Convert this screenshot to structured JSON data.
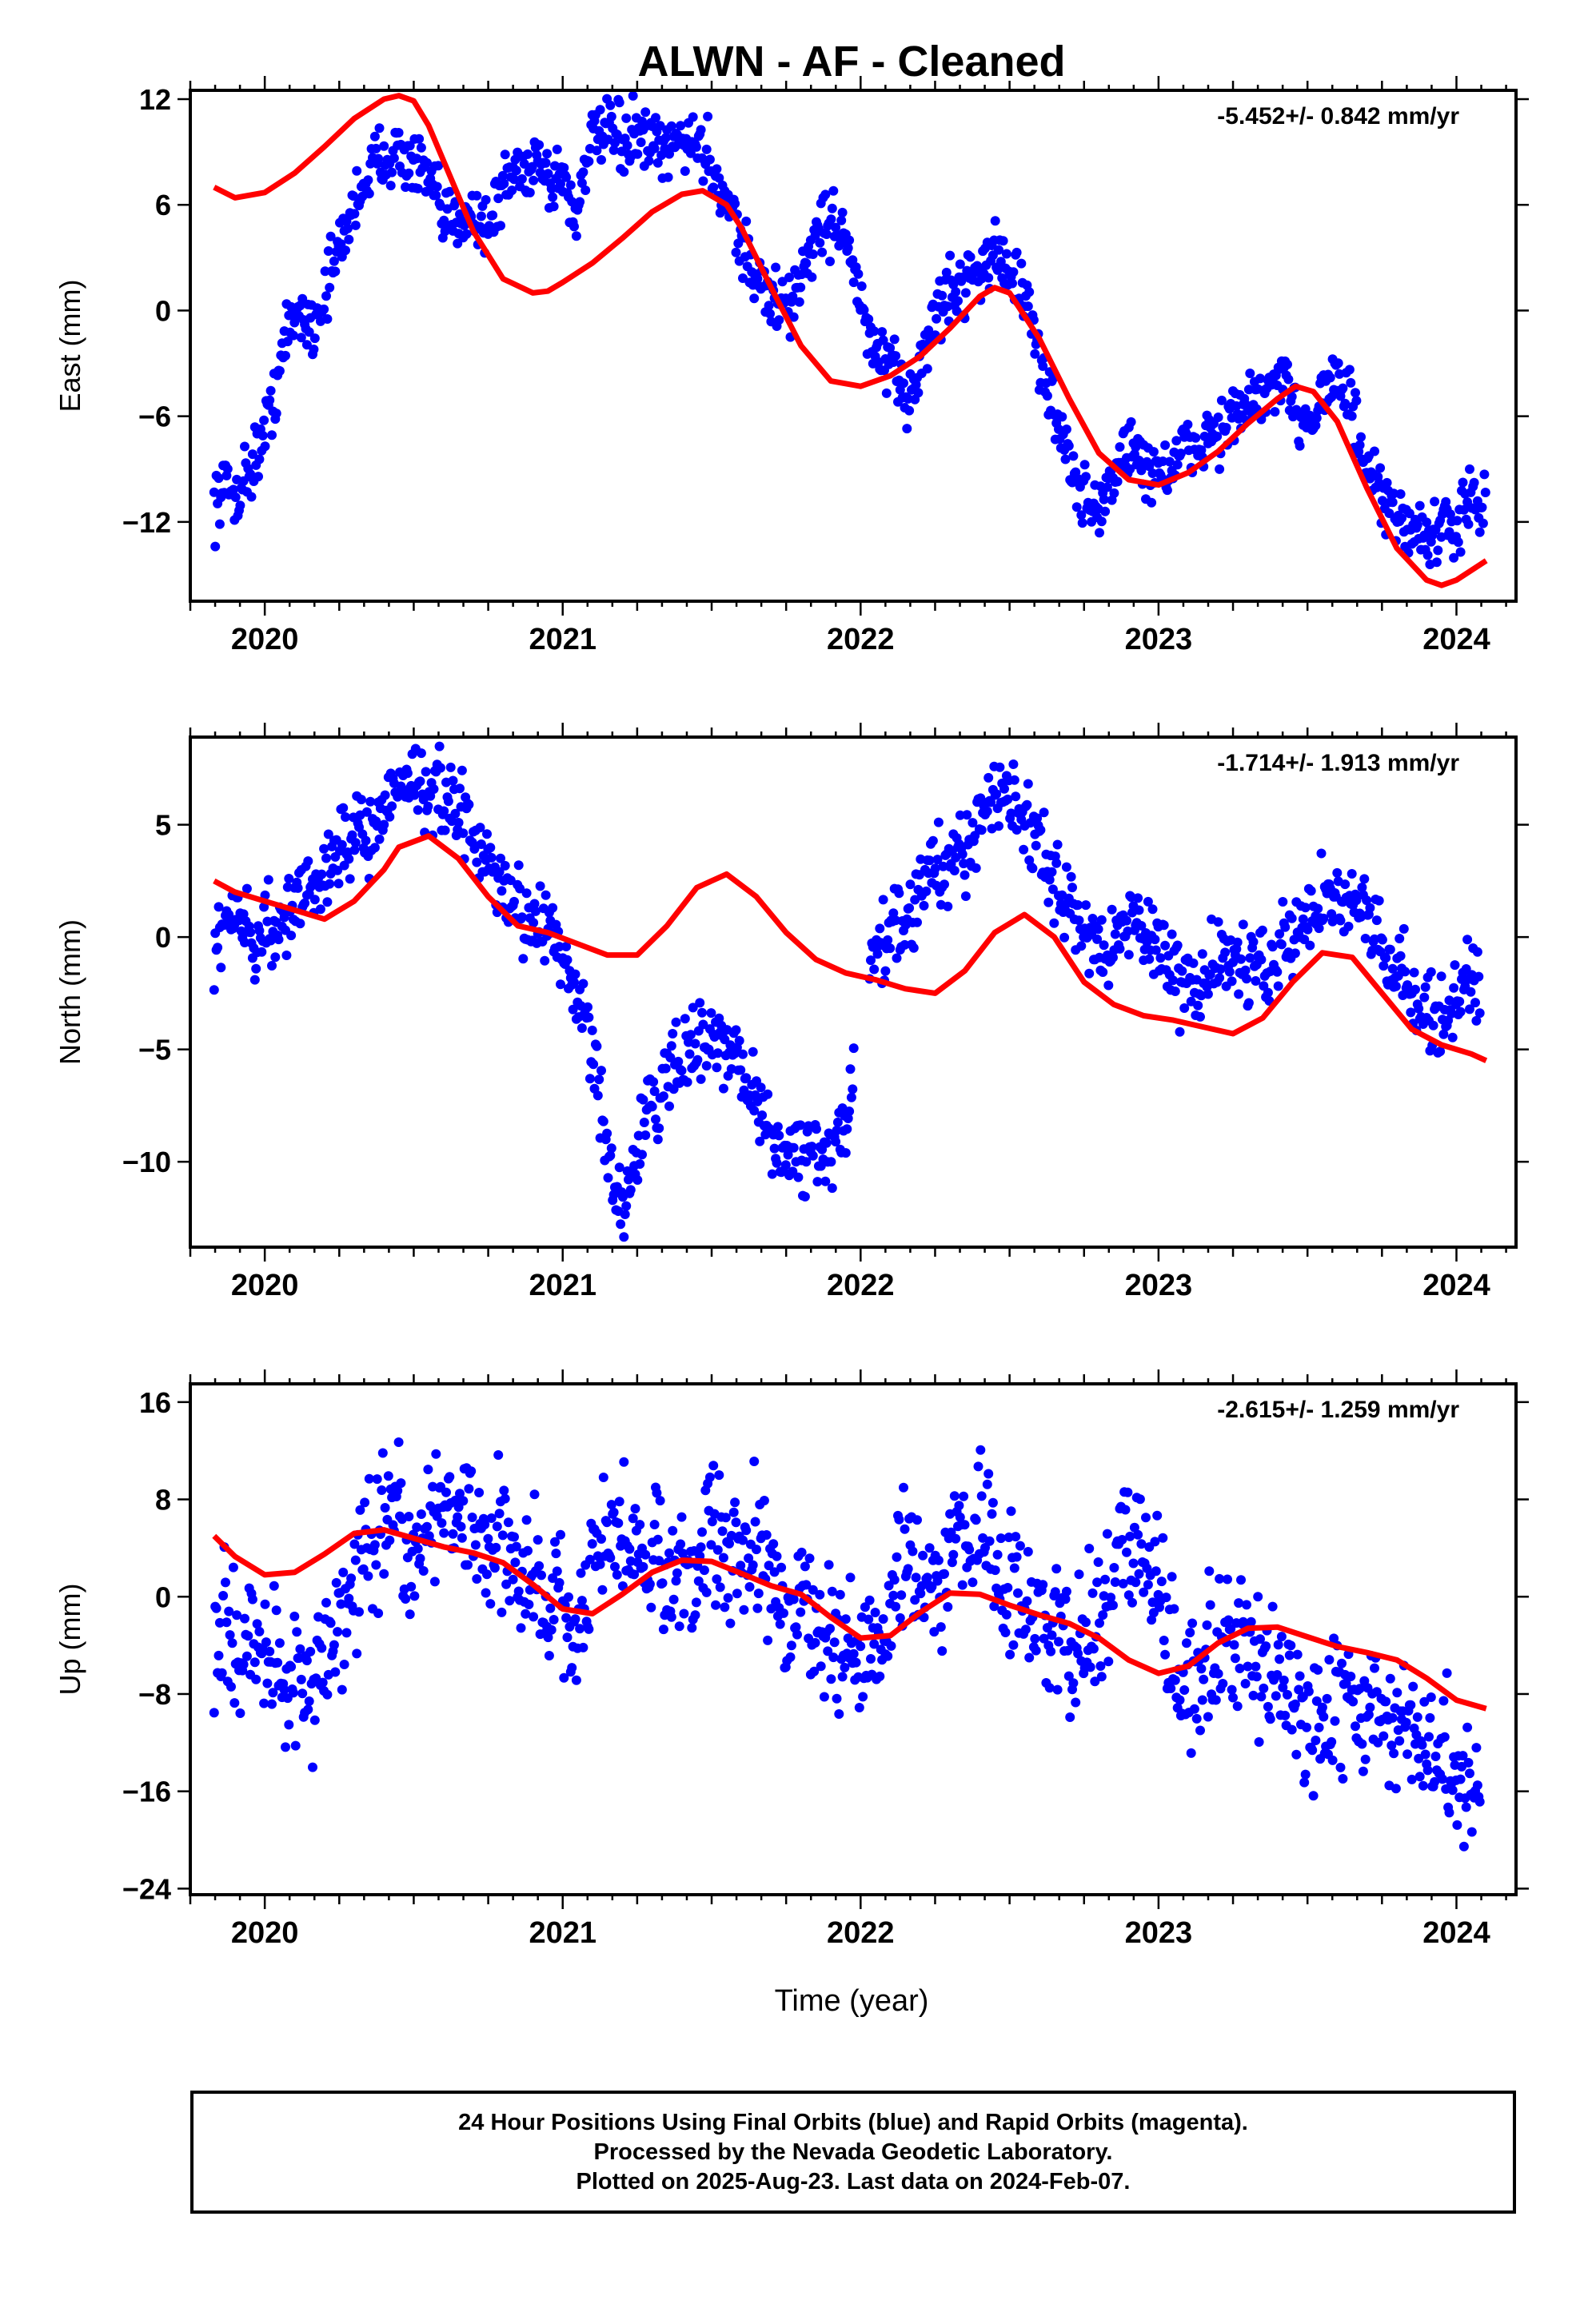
{
  "title": "ALWN  - AF - Cleaned",
  "xlabel": "Time (year)",
  "caption": {
    "line1": "24 Hour Positions Using Final Orbits (blue) and Rapid Orbits (magenta).",
    "line2": "Processed by the Nevada Geodetic Laboratory.",
    "line3": "Plotted on 2025-Aug-23. Last data on 2024-Feb-07."
  },
  "colors": {
    "points": "#0000ff",
    "model": "#ff0000",
    "axes": "#000000"
  },
  "chart_data": [
    {
      "type": "scatter",
      "ylabel": "East (mm)",
      "rate_label": "-5.452+/- 0.842 mm/yr",
      "xlim": [
        2019.75,
        2024.2
      ],
      "ylim": [
        -16.5,
        12.5
      ],
      "x_ticks": [
        "2020",
        "2021",
        "2022",
        "2023",
        "2024"
      ],
      "y_ticks": [
        12,
        6,
        0,
        -6,
        -12
      ],
      "grid": false,
      "series": [
        {
          "role": "observations",
          "color": "#0000ff",
          "x": [
            2019.83,
            2019.86,
            2019.9,
            2019.95,
            2020.0,
            2020.04,
            2020.08,
            2020.12,
            2020.16,
            2020.2,
            2020.24,
            2020.28,
            2020.32,
            2020.36,
            2020.4,
            2020.44,
            2020.48,
            2020.52,
            2020.56,
            2020.6,
            2020.64,
            2020.68,
            2020.72,
            2020.76,
            2020.8,
            2020.84,
            2020.88,
            2020.92,
            2020.96,
            2021.0,
            2021.04,
            2021.08,
            2021.12,
            2021.16,
            2021.2,
            2021.24,
            2021.28,
            2021.32,
            2021.36,
            2021.4,
            2021.44,
            2021.48,
            2021.52,
            2021.56,
            2021.6,
            2021.64,
            2021.68,
            2021.72,
            2021.76,
            2021.8,
            2021.84,
            2021.88,
            2021.92,
            2021.96,
            2022.0,
            2022.04,
            2022.08,
            2022.12,
            2022.16,
            2022.2,
            2022.24,
            2022.28,
            2022.32,
            2022.36,
            2022.4,
            2022.44,
            2022.48,
            2022.52,
            2022.56,
            2022.6,
            2022.64,
            2022.68,
            2022.72,
            2022.76,
            2022.8,
            2022.84,
            2022.88,
            2022.92,
            2022.96,
            2023.0,
            2023.04,
            2023.08,
            2023.12,
            2023.16,
            2023.2,
            2023.24,
            2023.28,
            2023.32,
            2023.36,
            2023.4,
            2023.44,
            2023.48,
            2023.52,
            2023.56,
            2023.6,
            2023.64,
            2023.68,
            2023.72,
            2023.76,
            2023.8,
            2023.84,
            2023.88,
            2023.92,
            2023.96,
            2024.0,
            2024.04,
            2024.08,
            2024.1
          ],
          "y": [
            -11,
            -10,
            -10.5,
            -9,
            -7,
            -4,
            -1,
            0,
            -1,
            1,
            3,
            5,
            7,
            8,
            9,
            9,
            8.5,
            8,
            7,
            5,
            5,
            6,
            5,
            5,
            7,
            8,
            8,
            9,
            7,
            8,
            5,
            9,
            10,
            10,
            9.5,
            10,
            9.5,
            9,
            9,
            10,
            9.5,
            9,
            7.5,
            6,
            4,
            2,
            1,
            0.5,
            0,
            2,
            4,
            5,
            5,
            4,
            0,
            -2,
            -3,
            -4,
            -5,
            -3,
            -1,
            1,
            1,
            2,
            2.5,
            3,
            3,
            2,
            0,
            -3,
            -5,
            -7,
            -10,
            -11,
            -11,
            -10,
            -8,
            -8,
            -9,
            -9,
            -9,
            -8,
            -8,
            -7,
            -7,
            -6,
            -6,
            -5,
            -5,
            -4,
            -5,
            -6,
            -6,
            -4,
            -4,
            -5,
            -8,
            -10,
            -11,
            -12,
            -12,
            -12.5,
            -13,
            -12.5,
            -12,
            -11,
            -11.5,
            -11
          ]
        },
        {
          "role": "model",
          "color": "#ff0000",
          "x": [
            2019.83,
            2019.9,
            2020.0,
            2020.1,
            2020.2,
            2020.3,
            2020.4,
            2020.45,
            2020.5,
            2020.55,
            2020.6,
            2020.7,
            2020.8,
            2020.9,
            2020.95,
            2021.0,
            2021.1,
            2021.2,
            2021.3,
            2021.4,
            2021.47,
            2021.55,
            2021.6,
            2021.7,
            2021.8,
            2021.9,
            2022.0,
            2022.1,
            2022.2,
            2022.3,
            2022.4,
            2022.45,
            2022.5,
            2022.6,
            2022.7,
            2022.8,
            2022.9,
            2023.0,
            2023.1,
            2023.2,
            2023.3,
            2023.4,
            2023.46,
            2023.52,
            2023.6,
            2023.7,
            2023.8,
            2023.9,
            2023.95,
            2024.0,
            2024.1
          ],
          "y": [
            7.0,
            6.4,
            6.7,
            7.8,
            9.3,
            10.9,
            12.0,
            12.2,
            11.9,
            10.5,
            8.5,
            4.5,
            1.8,
            1.0,
            1.1,
            1.6,
            2.7,
            4.1,
            5.6,
            6.6,
            6.8,
            6.0,
            4.7,
            1.3,
            -2.0,
            -4.0,
            -4.3,
            -3.7,
            -2.6,
            -1.0,
            0.8,
            1.3,
            1.0,
            -1.6,
            -5.0,
            -8.1,
            -9.6,
            -9.9,
            -9.2,
            -8.0,
            -6.4,
            -5.0,
            -4.3,
            -4.6,
            -6.3,
            -10.1,
            -13.5,
            -15.3,
            -15.6,
            -15.3,
            -14.2
          ]
        }
      ]
    },
    {
      "type": "scatter",
      "ylabel": "North (mm)",
      "rate_label": "-1.714+/- 1.913 mm/yr",
      "xlim": [
        2019.75,
        2024.2
      ],
      "ylim": [
        -13.8,
        8.9
      ],
      "x_ticks": [
        "2020",
        "2021",
        "2022",
        "2023",
        "2024"
      ],
      "y_ticks": [
        5,
        0,
        -5,
        -10
      ],
      "grid": false,
      "series": [
        {
          "role": "observations",
          "color": "#0000ff",
          "x": [
            2019.83,
            2019.86,
            2019.9,
            2019.95,
            2020.0,
            2020.04,
            2020.08,
            2020.12,
            2020.16,
            2020.2,
            2020.24,
            2020.28,
            2020.32,
            2020.36,
            2020.4,
            2020.44,
            2020.48,
            2020.52,
            2020.56,
            2020.6,
            2020.64,
            2020.68,
            2020.72,
            2020.76,
            2020.8,
            2020.84,
            2020.88,
            2020.92,
            2020.96,
            2021.0,
            2021.04,
            2021.08,
            2021.12,
            2021.16,
            2021.2,
            2021.24,
            2021.28,
            2021.32,
            2021.36,
            2021.4,
            2021.44,
            2021.48,
            2021.52,
            2021.56,
            2021.6,
            2021.64,
            2021.68,
            2021.72,
            2021.76,
            2021.8,
            2021.84,
            2021.88,
            2021.92,
            2021.96,
            2022.04,
            2022.08,
            2022.12,
            2022.16,
            2022.2,
            2022.24,
            2022.28,
            2022.32,
            2022.36,
            2022.4,
            2022.44,
            2022.48,
            2022.52,
            2022.56,
            2022.6,
            2022.64,
            2022.68,
            2022.72,
            2022.76,
            2022.8,
            2022.84,
            2022.88,
            2022.92,
            2022.96,
            2023.0,
            2023.04,
            2023.08,
            2023.12,
            2023.16,
            2023.2,
            2023.24,
            2023.28,
            2023.32,
            2023.36,
            2023.4,
            2023.44,
            2023.48,
            2023.52,
            2023.56,
            2023.6,
            2023.64,
            2023.68,
            2023.72,
            2023.76,
            2023.8,
            2023.84,
            2023.88,
            2023.92,
            2023.96,
            2024.0,
            2024.04,
            2024.08
          ],
          "y": [
            0,
            0.5,
            1,
            0,
            0.5,
            0,
            1,
            2,
            2.5,
            3,
            3.5,
            4,
            5,
            5,
            5.5,
            6.5,
            7,
            7,
            6.5,
            6,
            5.5,
            5,
            4,
            3,
            2,
            1.5,
            1,
            0.5,
            0.5,
            -1,
            -2,
            -4,
            -7,
            -11,
            -12,
            -10,
            -8,
            -7,
            -6,
            -5.5,
            -5,
            -5,
            -4.5,
            -5,
            -6,
            -7,
            -8,
            -9,
            -10,
            -9.5,
            -9,
            -10,
            -9,
            -8,
            -1,
            0,
            0.5,
            1,
            2,
            3,
            3,
            3.5,
            4,
            5,
            6,
            6.5,
            6,
            5,
            4,
            3,
            2,
            1,
            0,
            -0.5,
            0,
            0.5,
            0.5,
            0,
            -0.5,
            -1,
            -2,
            -2,
            -1.5,
            -1,
            -0.5,
            -1,
            -1.5,
            -1,
            -0.5,
            0,
            0.5,
            1,
            1.5,
            2,
            1.5,
            1,
            0.5,
            0,
            -1,
            -2,
            -3,
            -3.5,
            -4,
            -3,
            -2,
            -2
          ]
        },
        {
          "role": "model",
          "color": "#ff0000",
          "x": [
            2019.83,
            2019.9,
            2020.0,
            2020.1,
            2020.2,
            2020.3,
            2020.4,
            2020.45,
            2020.55,
            2020.65,
            2020.75,
            2020.85,
            2020.95,
            2021.05,
            2021.15,
            2021.25,
            2021.35,
            2021.45,
            2021.55,
            2021.65,
            2021.75,
            2021.85,
            2021.95,
            2022.05,
            2022.15,
            2022.25,
            2022.35,
            2022.45,
            2022.55,
            2022.65,
            2022.75,
            2022.85,
            2022.95,
            2023.05,
            2023.15,
            2023.25,
            2023.35,
            2023.45,
            2023.55,
            2023.65,
            2023.75,
            2023.85,
            2023.95,
            2024.05,
            2024.1
          ],
          "y": [
            2.5,
            2.0,
            1.6,
            1.2,
            0.8,
            1.6,
            3.0,
            4.0,
            4.5,
            3.5,
            1.8,
            0.5,
            0.2,
            -0.3,
            -0.8,
            -0.8,
            0.5,
            2.2,
            2.8,
            1.8,
            0.2,
            -1.0,
            -1.6,
            -1.9,
            -2.3,
            -2.5,
            -1.5,
            0.2,
            1.0,
            0,
            -2.0,
            -3.0,
            -3.5,
            -3.7,
            -4.0,
            -4.3,
            -3.6,
            -2.0,
            -0.7,
            -0.9,
            -2.5,
            -4.1,
            -4.8,
            -5.2,
            -5.5
          ]
        }
      ]
    },
    {
      "type": "scatter",
      "ylabel": "Up (mm)",
      "rate_label": "-2.615+/- 1.259 mm/yr",
      "xlim": [
        2019.75,
        2024.2
      ],
      "ylim": [
        -24.5,
        17.5
      ],
      "x_ticks": [
        "2020",
        "2021",
        "2022",
        "2023",
        "2024"
      ],
      "y_ticks": [
        16,
        8,
        0,
        -8,
        -16,
        -24
      ],
      "grid": false,
      "series": [
        {
          "role": "observations",
          "color": "#0000ff",
          "x": [
            2019.83,
            2019.86,
            2019.9,
            2019.95,
            2020.0,
            2020.04,
            2020.08,
            2020.12,
            2020.16,
            2020.2,
            2020.24,
            2020.28,
            2020.32,
            2020.36,
            2020.4,
            2020.44,
            2020.48,
            2020.52,
            2020.56,
            2020.6,
            2020.64,
            2020.68,
            2020.72,
            2020.76,
            2020.8,
            2020.84,
            2020.88,
            2020.92,
            2020.96,
            2021.0,
            2021.04,
            2021.08,
            2021.12,
            2021.16,
            2021.2,
            2021.24,
            2021.28,
            2021.32,
            2021.36,
            2021.4,
            2021.44,
            2021.48,
            2021.52,
            2021.56,
            2021.6,
            2021.64,
            2021.68,
            2021.72,
            2021.76,
            2021.8,
            2021.84,
            2021.88,
            2021.92,
            2021.96,
            2022.0,
            2022.04,
            2022.08,
            2022.12,
            2022.16,
            2022.2,
            2022.24,
            2022.28,
            2022.32,
            2022.36,
            2022.4,
            2022.44,
            2022.48,
            2022.52,
            2022.56,
            2022.6,
            2022.64,
            2022.68,
            2022.72,
            2022.76,
            2022.8,
            2022.84,
            2022.88,
            2022.92,
            2022.96,
            2023.0,
            2023.04,
            2023.08,
            2023.12,
            2023.16,
            2023.2,
            2023.24,
            2023.28,
            2023.32,
            2023.36,
            2023.4,
            2023.44,
            2023.48,
            2023.52,
            2023.56,
            2023.6,
            2023.64,
            2023.68,
            2023.72,
            2023.76,
            2023.8,
            2023.84,
            2023.88,
            2023.92,
            2023.96,
            2024.0,
            2024.04,
            2024.08
          ],
          "y": [
            -4,
            -2,
            -5,
            -3,
            -6,
            -5,
            -7,
            -6,
            -8,
            -5,
            -3,
            0,
            2,
            5,
            6,
            7,
            4,
            3,
            5,
            8,
            6,
            7,
            5,
            4,
            6,
            3,
            2,
            0,
            -2,
            1,
            -3,
            -1,
            4,
            6,
            5,
            3,
            2,
            4,
            1,
            3,
            2,
            6,
            5,
            3,
            4,
            6,
            3,
            0,
            -2,
            1,
            -3,
            -4,
            -2,
            -5,
            -6,
            -4,
            -2,
            2,
            4,
            3,
            1,
            2,
            5,
            6,
            5,
            4,
            2,
            1,
            -1,
            -2,
            -3,
            -1,
            -4,
            -2,
            -3,
            0,
            7,
            5,
            3,
            0,
            -4,
            -6,
            -7,
            -5,
            -6,
            -4,
            -3,
            -5,
            -7,
            -6,
            -8,
            -10,
            -12,
            -11,
            -9,
            -8,
            -10,
            -9,
            -11,
            -12,
            -10,
            -13,
            -14,
            -12,
            -15,
            -17,
            -14
          ]
        },
        {
          "role": "model",
          "color": "#ff0000",
          "x": [
            2019.83,
            2019.9,
            2020.0,
            2020.1,
            2020.2,
            2020.3,
            2020.4,
            2020.5,
            2020.6,
            2020.7,
            2020.8,
            2020.9,
            2021.0,
            2021.1,
            2021.2,
            2021.3,
            2021.4,
            2021.5,
            2021.6,
            2021.7,
            2021.8,
            2021.9,
            2022.0,
            2022.1,
            2022.2,
            2022.3,
            2022.4,
            2022.5,
            2022.6,
            2022.7,
            2022.8,
            2022.9,
            2023.0,
            2023.1,
            2023.2,
            2023.3,
            2023.4,
            2023.5,
            2023.6,
            2023.7,
            2023.8,
            2023.9,
            2024.0,
            2024.1
          ],
          "y": [
            5.0,
            3.3,
            1.8,
            2.0,
            3.5,
            5.2,
            5.5,
            4.8,
            4.1,
            3.6,
            2.8,
            1.0,
            -1.0,
            -1.4,
            0.2,
            2.0,
            3.0,
            2.9,
            1.9,
            0.9,
            0.2,
            -1.7,
            -3.4,
            -3.2,
            -1.3,
            0.3,
            0.2,
            -0.7,
            -1.5,
            -2.2,
            -3.4,
            -5.2,
            -6.3,
            -5.7,
            -3.8,
            -2.6,
            -2.5,
            -3.3,
            -4.1,
            -4.6,
            -5.2,
            -6.7,
            -8.5,
            -9.2
          ]
        }
      ]
    }
  ]
}
